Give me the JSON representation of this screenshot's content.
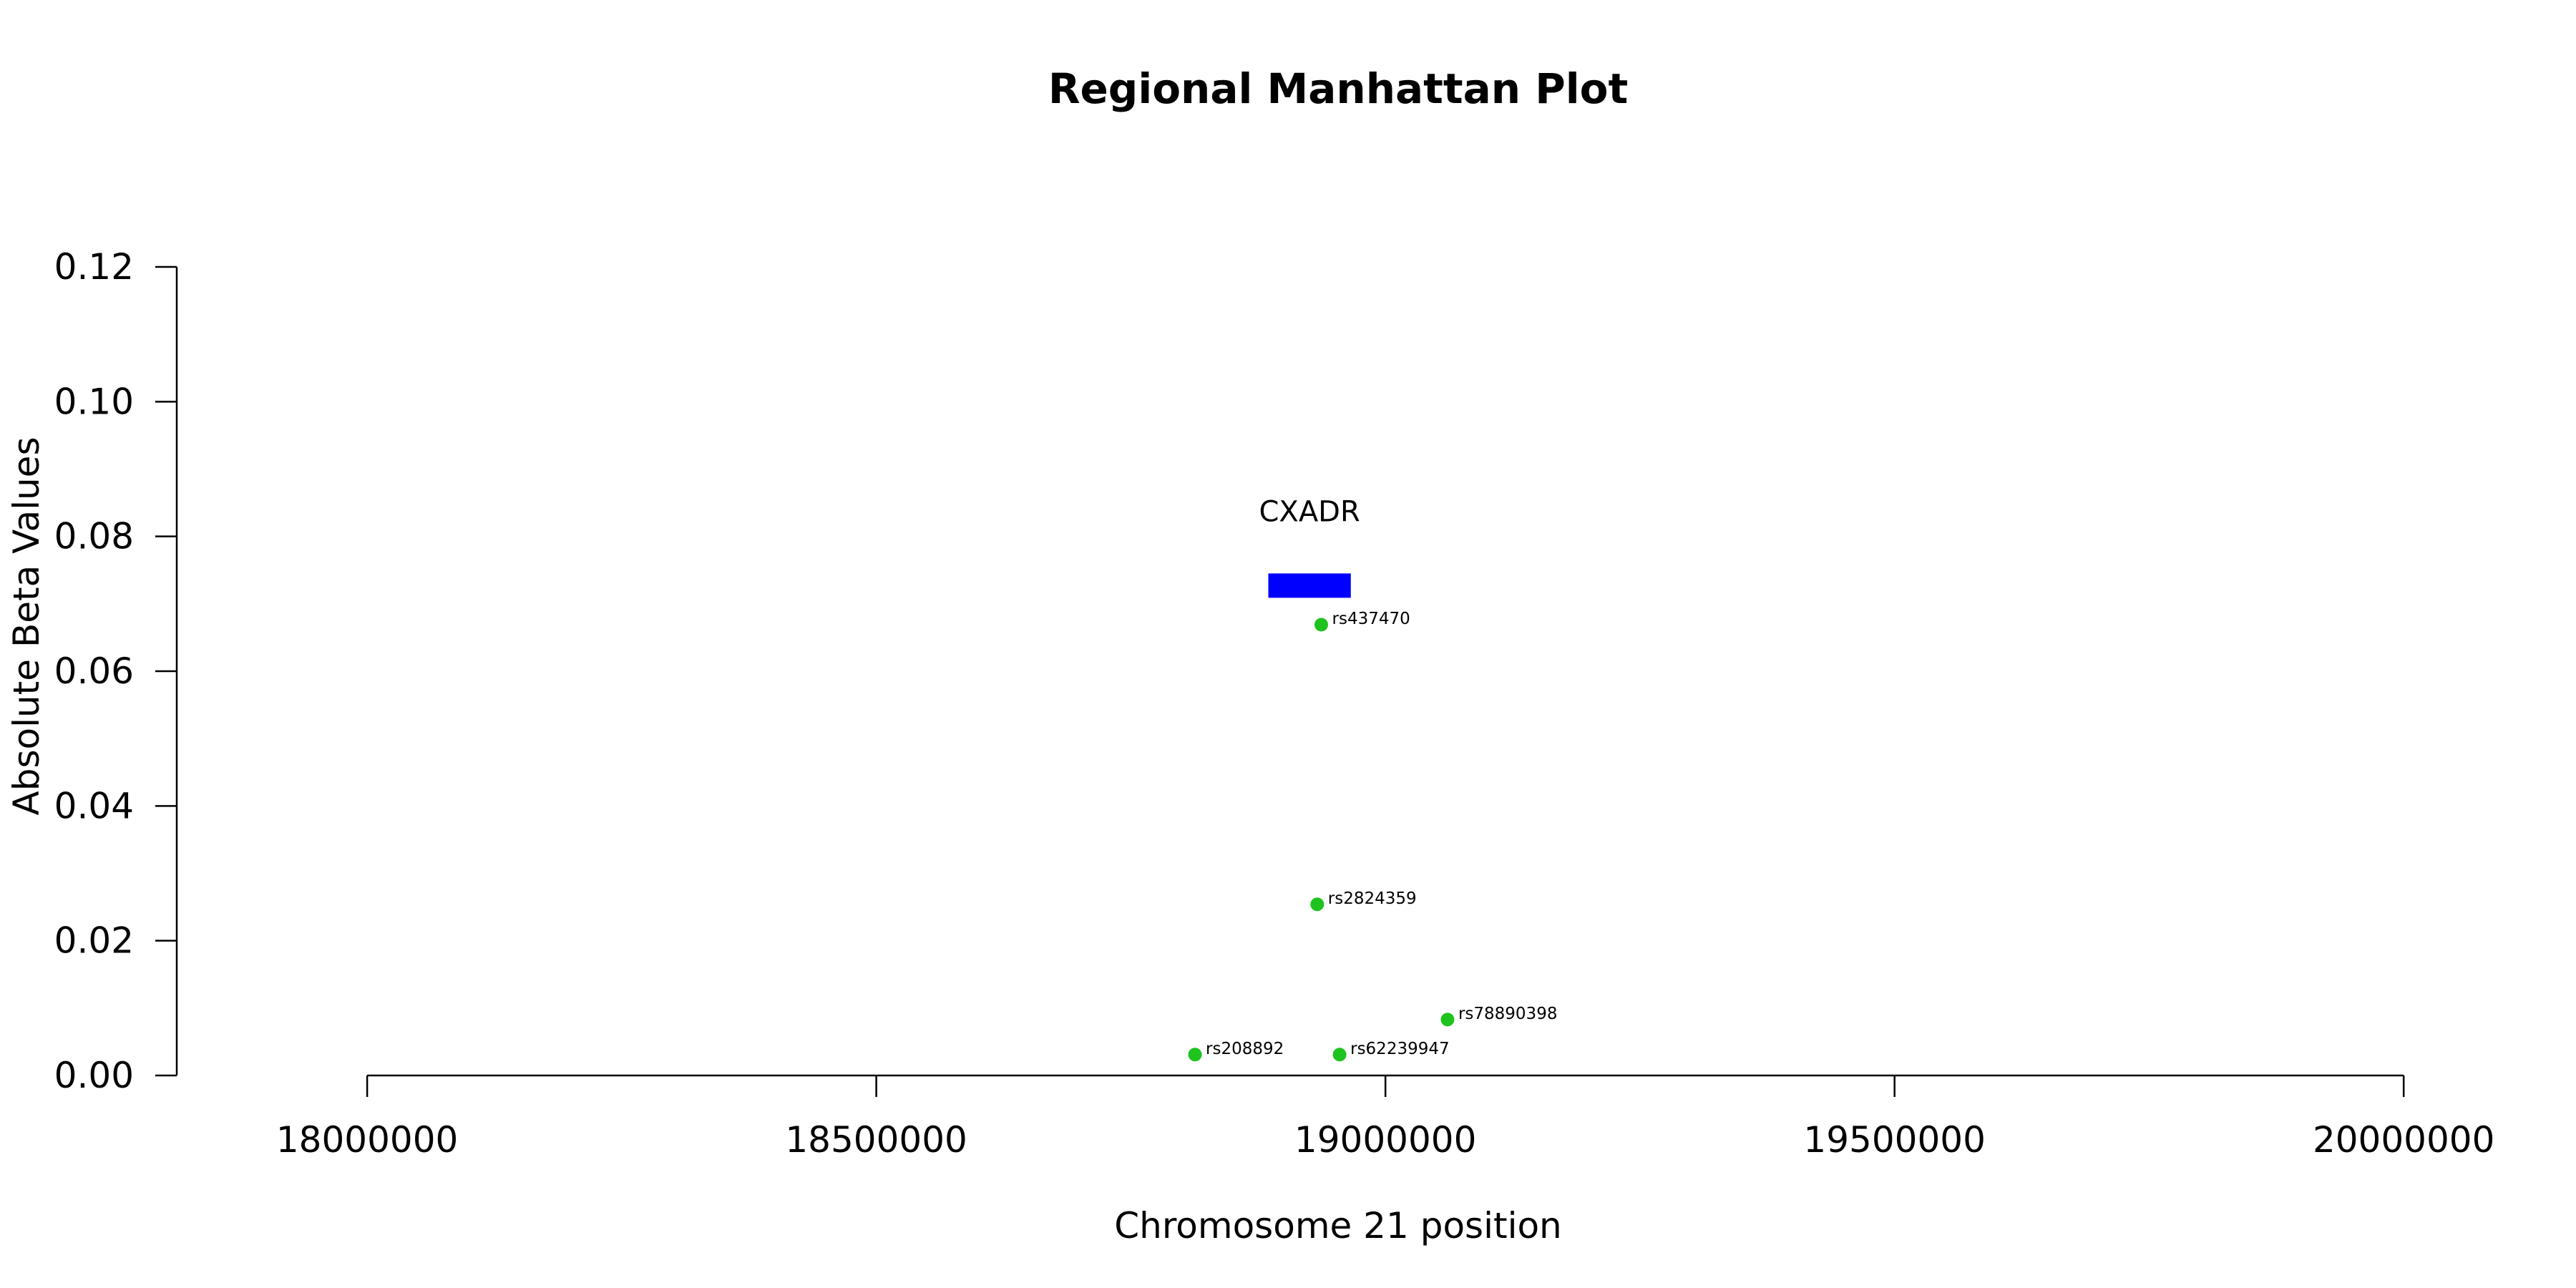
{
  "chart_data": {
    "type": "scatter",
    "title": "Regional Manhattan Plot",
    "xlabel": "Chromosome 21 position",
    "ylabel": "Absolute Beta Values",
    "xlim": [
      17813000,
      20087000
    ],
    "ylim": [
      0,
      0.12
    ],
    "x_ticks": [
      18000000,
      18500000,
      19000000,
      19500000,
      20000000
    ],
    "x_tick_labels": [
      "18000000",
      "18500000",
      "19000000",
      "19500000",
      "20000000"
    ],
    "y_ticks": [
      0,
      0.02,
      0.04,
      0.06,
      0.08,
      0.1,
      0.12
    ],
    "y_tick_labels": [
      "0.00",
      "0.02",
      "0.04",
      "0.06",
      "0.08",
      "0.10",
      "0.12"
    ],
    "grid": false,
    "point_color": "#1ec31e",
    "gene_color": "#0000ff",
    "points": [
      {
        "label": "rs437470",
        "x": 18937000,
        "y": 0.0669
      },
      {
        "label": "rs2824359",
        "x": 18933000,
        "y": 0.0254
      },
      {
        "label": "rs78890398",
        "x": 19061000,
        "y": 0.0083
      },
      {
        "label": "rs208892",
        "x": 18813000,
        "y": 0.0031
      },
      {
        "label": "rs62239947",
        "x": 18955000,
        "y": 0.0031
      }
    ],
    "genes": [
      {
        "name": "CXADR",
        "start": 18885000,
        "end": 18966000,
        "y": 0.0727
      }
    ]
  }
}
